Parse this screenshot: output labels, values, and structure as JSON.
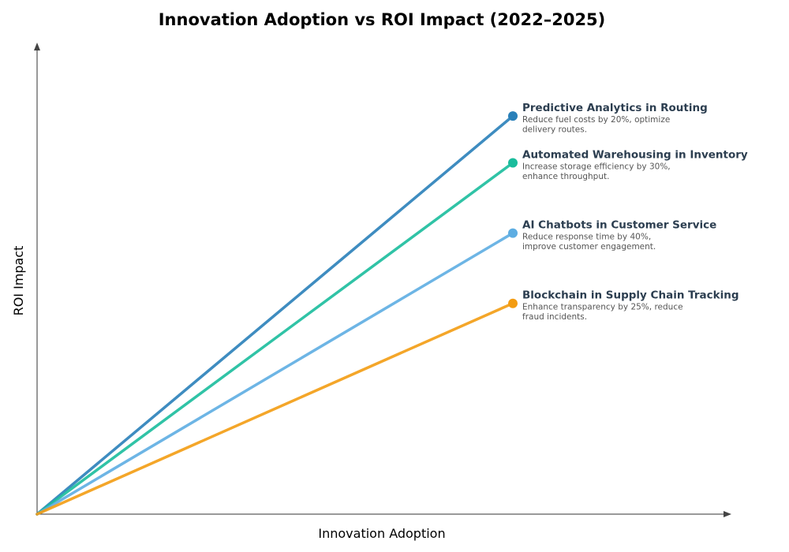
{
  "chart_data": {
    "type": "line",
    "title": "Innovation Adoption vs ROI Impact (2022–2025)",
    "xlabel": "Innovation Adoption",
    "ylabel": "ROI Impact",
    "xlim": [
      0,
      10
    ],
    "ylim": [
      0,
      10
    ],
    "grid": false,
    "legend": "none (direct labels at line ends)",
    "series": [
      {
        "name": "Predictive Analytics in Routing",
        "description": [
          "Reduce fuel costs by 20%, optimize",
          "delivery routes."
        ],
        "color": "#2980b9",
        "x": [
          0,
          7
        ],
        "y": [
          0,
          8.5
        ]
      },
      {
        "name": "Automated Warehousing in Inventory",
        "description": [
          "Increase storage efficiency by 30%,",
          "enhance throughput."
        ],
        "color": "#1abc9c",
        "x": [
          0,
          7
        ],
        "y": [
          0,
          7.5
        ]
      },
      {
        "name": "AI Chatbots in Customer Service",
        "description": [
          "Reduce response time by 40%,",
          "improve customer engagement."
        ],
        "color": "#5dade2",
        "x": [
          0,
          7
        ],
        "y": [
          0,
          6.0
        ]
      },
      {
        "name": "Blockchain in Supply Chain Tracking",
        "description": [
          "Enhance transparency by 25%, reduce",
          "fraud incidents."
        ],
        "color": "#f39c12",
        "x": [
          0,
          7
        ],
        "y": [
          0,
          4.5
        ]
      }
    ]
  }
}
